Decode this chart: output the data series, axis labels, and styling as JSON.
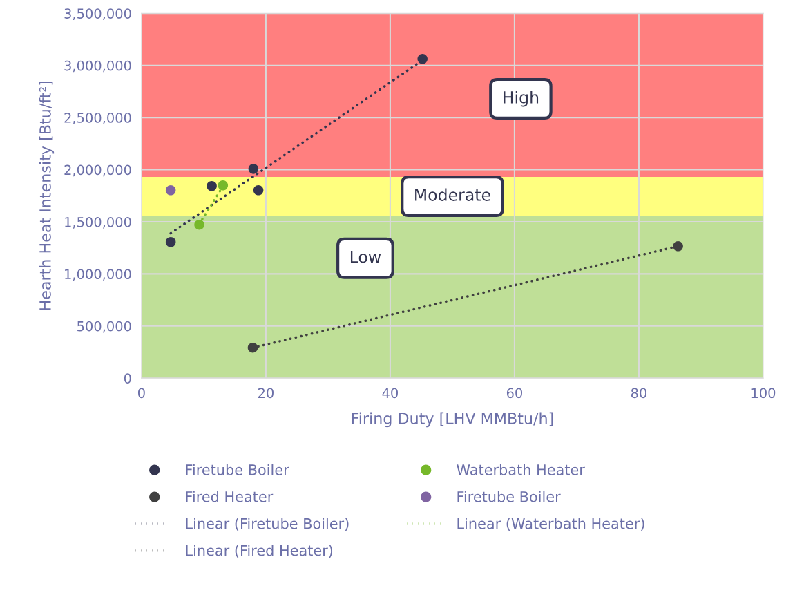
{
  "chart_data": {
    "type": "scatter",
    "xlabel": "Firing Duty [LHV MMBtu/h]",
    "ylabel": "Hearth Heat Intensity [Btu/ft²]",
    "xlim": [
      0,
      100
    ],
    "xticks": [
      0,
      20,
      40,
      60,
      80,
      100
    ],
    "ylim": [
      0,
      3500000
    ],
    "yticks": [
      {
        "value": 0,
        "label": "0"
      },
      {
        "value": 500000,
        "label": "500,000"
      },
      {
        "value": 1000000,
        "label": "1,000,000"
      },
      {
        "value": 1500000,
        "label": "1,500,000"
      },
      {
        "value": 2000000,
        "label": "2,000,000"
      },
      {
        "value": 2500000,
        "label": "2,500,000"
      },
      {
        "value": 3000000,
        "label": "3,000,000"
      },
      {
        "value": 3500000,
        "label": "3,500,000"
      }
    ],
    "grid": true,
    "legend": "bottom",
    "marker": "circle",
    "bands": [
      {
        "axis": "y",
        "from": 0,
        "to": 1560000,
        "label": "Low",
        "color": "#bfdf97"
      },
      {
        "axis": "y",
        "from": 1560000,
        "to": 1930000,
        "label": "Moderate",
        "color": "#ffff7f"
      },
      {
        "axis": "y",
        "from": 1930000,
        "to": 3500000,
        "label": "High",
        "color": "#ff7f7f"
      }
    ],
    "series": [
      {
        "name": "Firetube Boiler",
        "color": "#33354f",
        "x": [
          4.7,
          11.3,
          18.0,
          18.8,
          45.2
        ],
        "values": [
          1306000,
          1843000,
          2008000,
          1803000,
          3062000
        ]
      },
      {
        "name": "Waterbath Heater",
        "color": "#76b82a",
        "x": [
          9.3,
          13.1
        ],
        "values": [
          1472000,
          1849000
        ]
      },
      {
        "name": "Fired Heater",
        "color": "#404040",
        "x": [
          17.9,
          86.3
        ],
        "values": [
          292000,
          1266000
        ]
      },
      {
        "name": "Firetube Boiler",
        "color": "#8064a2",
        "x": [
          4.7
        ],
        "values": [
          1803000
        ]
      },
      {
        "name": "Linear (Firetube Boiler)",
        "type": "line",
        "line_style": "dotted",
        "marker": "none",
        "color": "#33354f",
        "x": [
          4.7,
          45.2
        ],
        "values": [
          1390000,
          3050000
        ]
      },
      {
        "name": "Linear (Waterbath Heater)",
        "type": "line",
        "line_style": "dotted",
        "marker": "none",
        "color": "#76b82a",
        "x": [
          9.3,
          13.1
        ],
        "values": [
          1480000,
          1840000
        ]
      },
      {
        "name": "Linear (Fired Heater)",
        "type": "line",
        "line_style": "dotted",
        "marker": "none",
        "color": "#404040",
        "x": [
          17.9,
          86.3
        ],
        "values": [
          292000,
          1266000
        ]
      }
    ]
  }
}
